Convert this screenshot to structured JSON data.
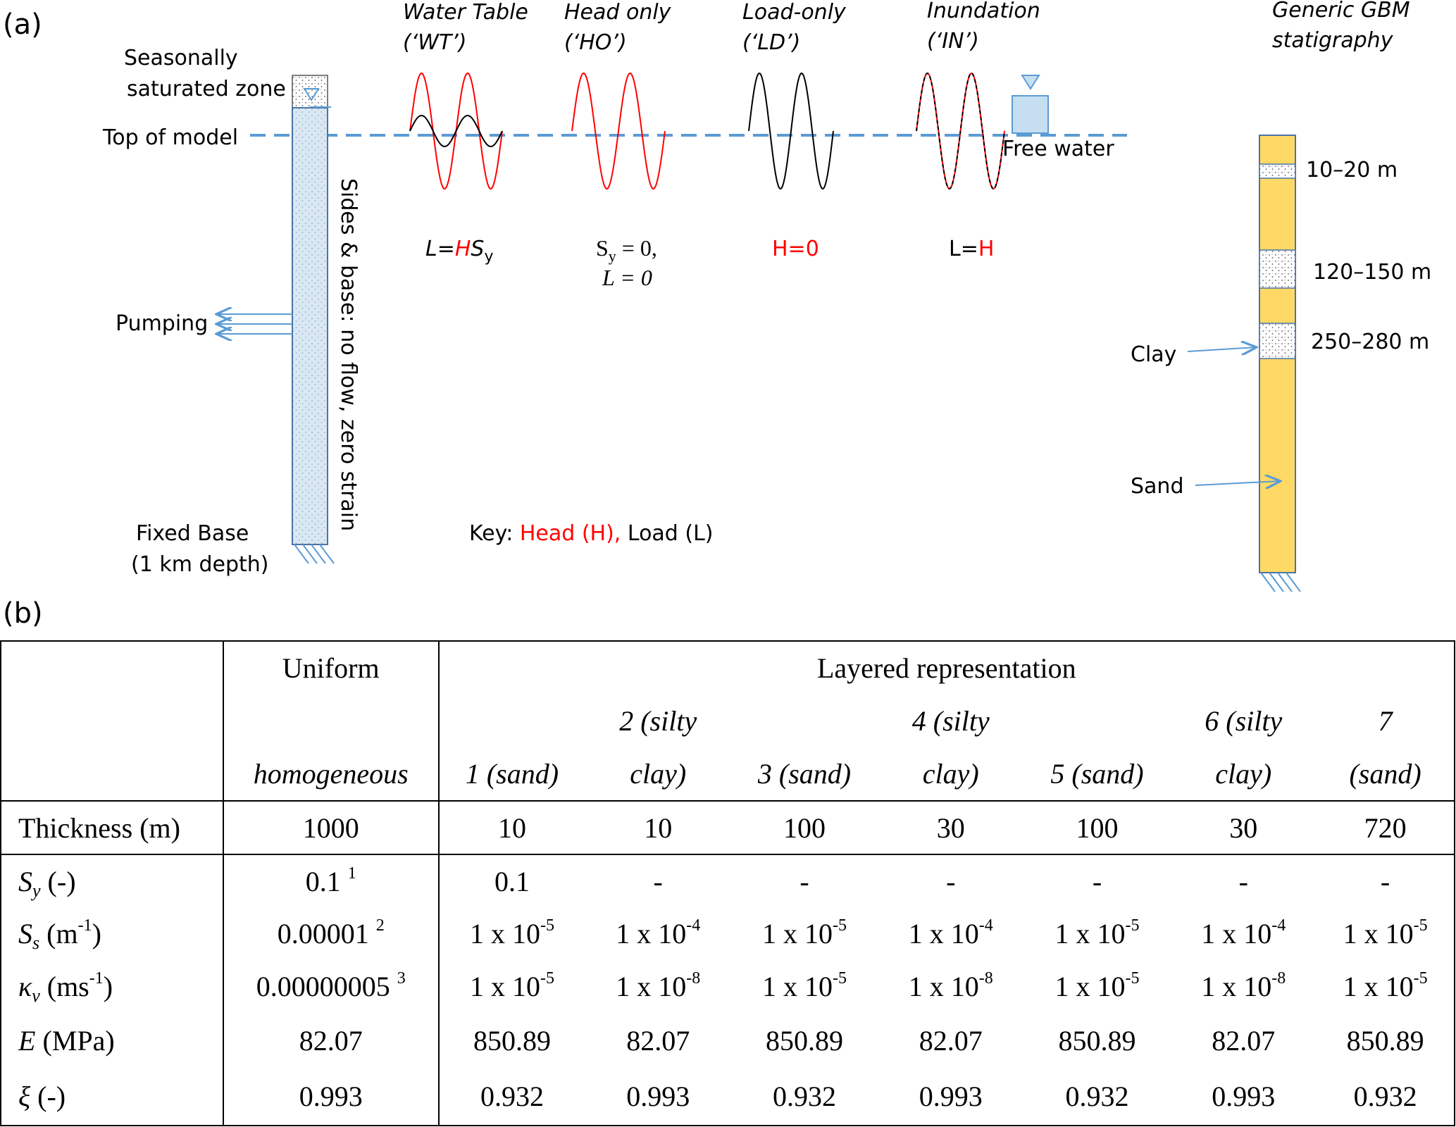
{
  "panel_a": {
    "label": "(a)",
    "seasonal_zone_1": "Seasonally",
    "seasonal_zone_2": "saturated zone",
    "top_of_model": "Top of model",
    "pumping": "Pumping",
    "fixed_base_1": "Fixed Base",
    "fixed_base_2": "(1 km depth)",
    "sides_base": "Sides & base: no flow, zero strain",
    "free_water": "Free water",
    "scenarios": [
      {
        "name": "Water Table",
        "code": "(‘WT’)"
      },
      {
        "name": "Head only",
        "code": "(‘HO’)"
      },
      {
        "name": "Load-only",
        "code": "(‘LD’)"
      },
      {
        "name": "Inundation",
        "code": "(‘IN’)"
      }
    ],
    "eq_wt_l": "L=",
    "eq_wt_h": "H",
    "eq_wt_s": "S",
    "eq_wt_sub": "y",
    "eq_ho_1": "S",
    "eq_ho_sub": "y",
    "eq_ho_1b": " = 0,",
    "eq_ho_2": "L = 0",
    "eq_ld": "H=0",
    "eq_in_l": "L=",
    "eq_in_h": "H",
    "key_prefix": "Key: ",
    "key_head": "Head (H),",
    "key_load": " Load (L)",
    "strat_title_1": "Generic GBM",
    "strat_title_2": "statigraphy",
    "depth_1": "10–20 m",
    "depth_2": "120–150 m",
    "depth_3": "250–280 m",
    "clay": "Clay",
    "sand": "Sand"
  },
  "panel_b": {
    "label": "(b)",
    "uniform": "Uniform",
    "homogeneous": "homogeneous",
    "layered": "Layered representation",
    "layers": [
      {
        "l1": "",
        "l2": "1 (sand)"
      },
      {
        "l1": "2 (silty",
        "l2": "clay)"
      },
      {
        "l1": "",
        "l2": "3 (sand)"
      },
      {
        "l1": "4 (silty",
        "l2": "clay)"
      },
      {
        "l1": "",
        "l2": "5 (sand)"
      },
      {
        "l1": "6 (silty",
        "l2": "clay)"
      },
      {
        "l1": "7",
        "l2": "(sand)"
      }
    ],
    "rows": {
      "thickness": {
        "label": "Thickness (m)",
        "uniform": "1000",
        "values": [
          "10",
          "10",
          "100",
          "30",
          "100",
          "30",
          "720"
        ]
      },
      "sy": {
        "sym": "S",
        "sub": "y",
        "unit": " (-)",
        "uniform": "0.1",
        "note": "1",
        "values": [
          "0.1",
          "-",
          "-",
          "-",
          "-",
          "-",
          "-"
        ]
      },
      "ss": {
        "sym": "S",
        "sub": "s",
        "unit_pre": " (m",
        "unit_exp": "-1",
        "unit_post": ")",
        "uniform": "0.00001",
        "note": "2",
        "mantissa": "1 x 10",
        "exps": [
          "-5",
          "-4",
          "-5",
          "-4",
          "-5",
          "-4",
          "-5"
        ]
      },
      "kv": {
        "sym": "κ",
        "sub": "v",
        "unit_pre": " (ms",
        "unit_exp": "-1",
        "unit_post": ")",
        "uniform": "0.00000005",
        "note": "3",
        "mantissa": "1 x 10",
        "exps": [
          "-5",
          "-8",
          "-5",
          "-8",
          "-5",
          "-8",
          "-5"
        ]
      },
      "e": {
        "sym": "E",
        "unit": " (MPa)",
        "uniform": "82.07",
        "values": [
          "850.89",
          "82.07",
          "850.89",
          "82.07",
          "850.89",
          "82.07",
          "850.89"
        ]
      },
      "xi": {
        "sym": "ξ",
        "unit": " (-)",
        "uniform": "0.993",
        "values": [
          "0.932",
          "0.993",
          "0.932",
          "0.993",
          "0.932",
          "0.993",
          "0.932"
        ]
      }
    }
  },
  "colors": {
    "head": "#ff0000",
    "load": "#000000",
    "water": "#5b9bd5",
    "sand": "#ffd966",
    "column_fill": "#dae8f4",
    "free_water_fill": "#c6dff0"
  }
}
